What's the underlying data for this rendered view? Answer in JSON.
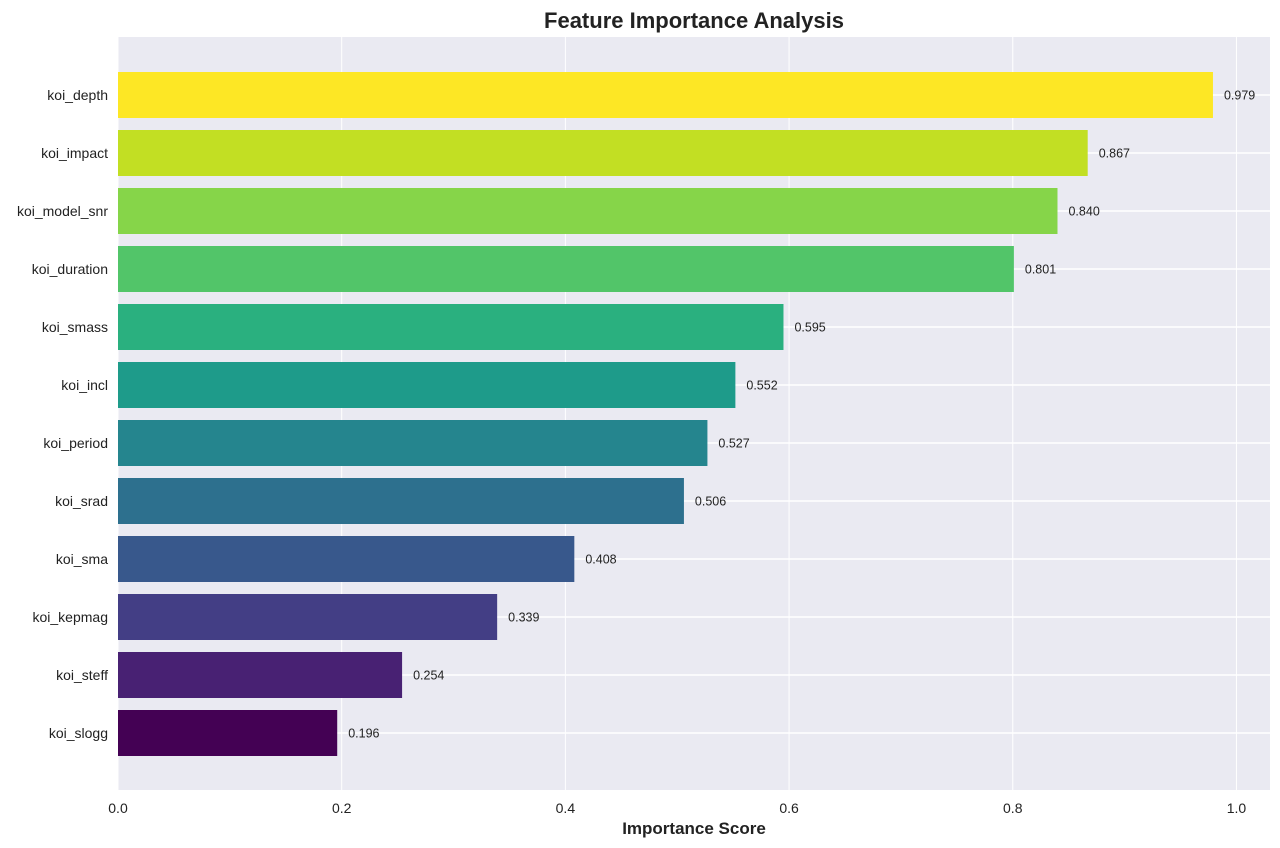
{
  "chart_data": {
    "type": "bar",
    "orientation": "horizontal",
    "title": "Feature Importance Analysis",
    "xlabel": "Importance Score",
    "ylabel": "",
    "xlim": [
      0,
      1.03
    ],
    "xticks": [
      0.0,
      0.2,
      0.4,
      0.6,
      0.8,
      1.0
    ],
    "xtick_labels": [
      "0.0",
      "0.2",
      "0.4",
      "0.6",
      "0.8",
      "1.0"
    ],
    "grid": true,
    "categories": [
      "koi_depth",
      "koi_impact",
      "koi_model_snr",
      "koi_duration",
      "koi_smass",
      "koi_incl",
      "koi_period",
      "koi_srad",
      "koi_sma",
      "koi_kepmag",
      "koi_steff",
      "koi_slogg"
    ],
    "values": [
      0.979,
      0.867,
      0.84,
      0.801,
      0.595,
      0.552,
      0.527,
      0.506,
      0.408,
      0.339,
      0.254,
      0.196
    ],
    "value_labels": [
      "0.979",
      "0.867",
      "0.840",
      "0.801",
      "0.595",
      "0.552",
      "0.527",
      "0.506",
      "0.408",
      "0.339",
      "0.254",
      "0.196"
    ],
    "colors": [
      "#fde725",
      "#c2df23",
      "#86d549",
      "#52c569",
      "#2ab07f",
      "#1e9b8a",
      "#25858e",
      "#2d708e",
      "#38588c",
      "#433e85",
      "#482173",
      "#440154"
    ]
  },
  "style": {
    "plot_background": "#eaeaf2",
    "grid_color": "#ffffff"
  }
}
